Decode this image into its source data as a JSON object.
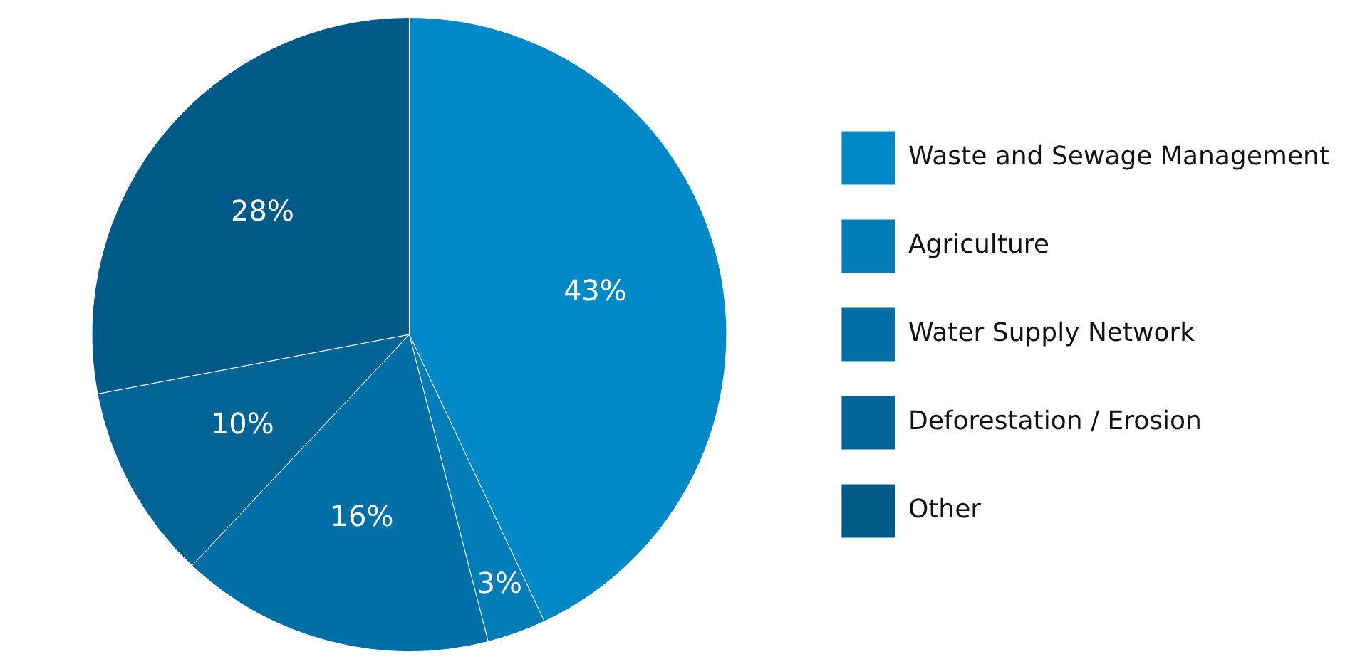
{
  "chart_data": {
    "type": "pie",
    "categories": [
      "Waste and Sewage Management",
      "Agriculture",
      "Water Supply Network",
      "Deforestation / Erosion",
      "Other"
    ],
    "values": [
      43,
      3,
      16,
      10,
      28
    ],
    "colors": [
      "#0089c6",
      "#007db6",
      "#006fa6",
      "#006495",
      "#005a87"
    ],
    "value_labels": [
      "43%",
      "3%",
      "16%",
      "10%",
      "28%"
    ],
    "legend": "right"
  }
}
